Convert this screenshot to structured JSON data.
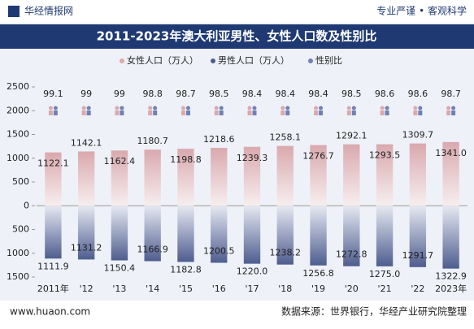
{
  "header": {
    "brand": "华经情报网",
    "slogan": "专业严谨 • 客观科学"
  },
  "chart_data": {
    "type": "diverging-bar",
    "title": "2011-2023年澳大利亚男性、女性人口数及性别比",
    "categories": [
      "2011年",
      "'12",
      "'13",
      "'14",
      "'15",
      "'16",
      "'17",
      "'18",
      "'19",
      "'20",
      "'21",
      "'22",
      "2023年"
    ],
    "series": [
      {
        "name": "女性人口（万人）",
        "color": "#d9a9ae",
        "values": [
          1122.1,
          1142.1,
          1162.4,
          1180.7,
          1198.8,
          1218.6,
          1239.3,
          1258.1,
          1276.7,
          1292.1,
          1293.5,
          1309.7,
          1341.0
        ],
        "value_labels": [
          "1122.1",
          "1142.1",
          "1162.4",
          "1180.7",
          "1198.8",
          "1218.6",
          "1239.3",
          "1258.1",
          "1276.7",
          "1292.1",
          "1293.5",
          "1309.7",
          "1341.0"
        ]
      },
      {
        "name": "男性人口（万人）",
        "color": "#4e5d8f",
        "values": [
          -1111.9,
          -1131.2,
          -1150.4,
          -1166.9,
          -1182.8,
          -1200.5,
          -1220.0,
          -1238.2,
          -1256.8,
          -1272.8,
          -1275.0,
          -1291.7,
          -1322.9
        ],
        "value_labels": [
          "1111.9",
          "1131.2",
          "1150.4",
          "1166.9",
          "1182.8",
          "1200.5",
          "1220.0",
          "1238.2",
          "1256.8",
          "1272.8",
          "1275.0",
          "1291.7",
          "1322.9"
        ]
      },
      {
        "name": "性别比",
        "color": "#7080b4",
        "values": [
          99.1,
          99,
          99,
          98.8,
          98.7,
          98.5,
          98.4,
          98.4,
          98.4,
          98.5,
          98.6,
          98.6,
          98.7
        ]
      }
    ],
    "ylim": [
      -1500,
      2500
    ],
    "yticks": [
      {
        "value": -1500,
        "label": "1500"
      },
      {
        "value": -1000,
        "label": "1000"
      },
      {
        "value": -500,
        "label": "500"
      },
      0,
      500,
      1000,
      1500,
      2000,
      2500
    ]
  },
  "footer": {
    "website": "www.huaon.com",
    "source": "数据来源：世界银行，华经产业研究院整理"
  }
}
